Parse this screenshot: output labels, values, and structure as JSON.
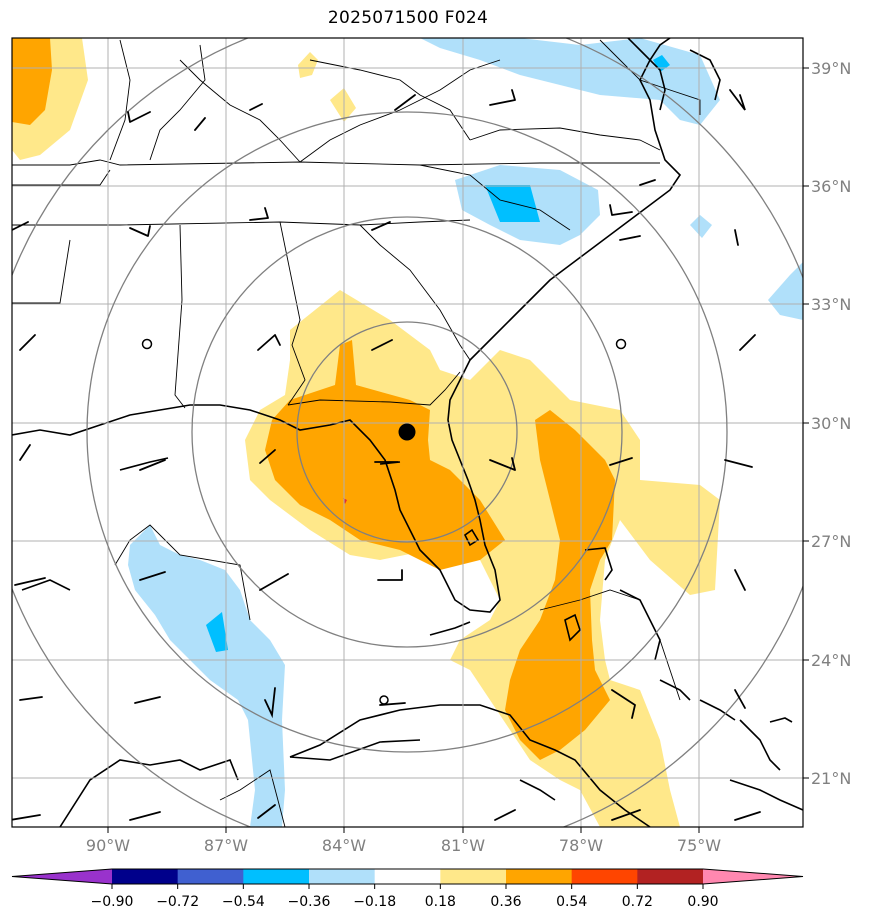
{
  "title": "2025071500 F024",
  "lat_labels": [
    "39°N",
    "36°N",
    "33°N",
    "30°N",
    "27°N",
    "24°N",
    "21°N"
  ],
  "lon_labels": [
    "90°W",
    "87°W",
    "84°W",
    "81°W",
    "78°W",
    "75°W"
  ],
  "colorbar": {
    "colors": [
      "#9932cc",
      "#00008b",
      "#4060d0",
      "#00bfff",
      "#b0e0fa",
      "#ffffff",
      "#ffe88a",
      "#ffa500",
      "#ff4500",
      "#b22222",
      "#ff88b0"
    ],
    "tick_labels": [
      "−0.90",
      "−0.72",
      "−0.54",
      "−0.36",
      "−0.18",
      "0.18",
      "0.36",
      "0.54",
      "0.72",
      "0.90"
    ]
  },
  "colors": {
    "positive_light": "#ffe88a",
    "positive_mid": "#ffa500",
    "negative_light": "#b0e0fa",
    "negative_mid": "#00bfff",
    "grid": "#b0b0b0",
    "range_rings": "#808080"
  },
  "marker": {
    "name": "center-point",
    "lat": 29.8,
    "lon": -82.5
  }
}
